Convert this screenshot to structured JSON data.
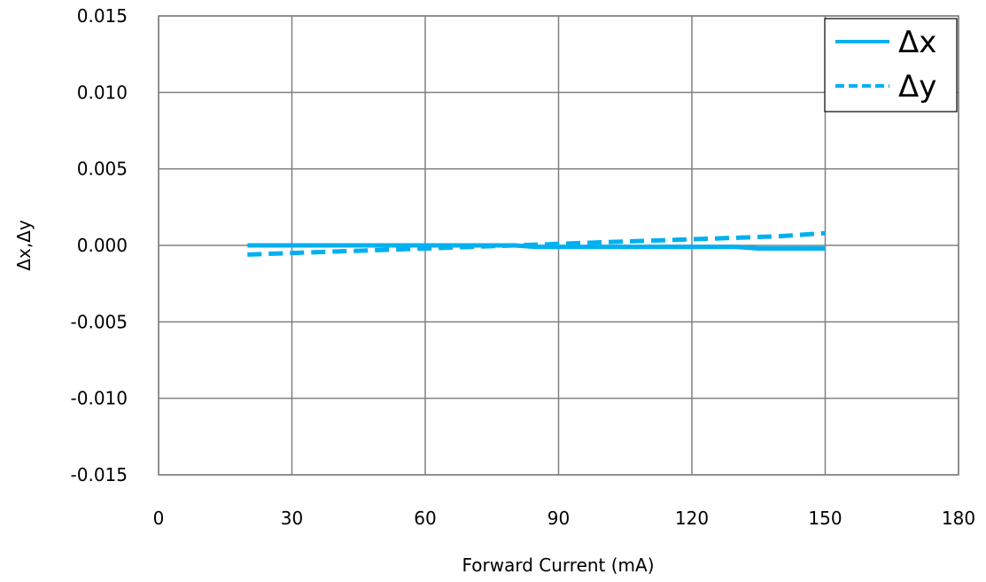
{
  "chart_data": {
    "type": "line",
    "title": "",
    "xlabel": "Forward Current (mA)",
    "ylabel": "Δx,Δy",
    "xlim": [
      0,
      180
    ],
    "ylim": [
      -0.015,
      0.015
    ],
    "x_ticks": [
      0,
      30,
      60,
      90,
      120,
      150,
      180
    ],
    "y_ticks": [
      -0.015,
      -0.01,
      -0.005,
      0.0,
      0.005,
      0.01,
      0.015
    ],
    "x_tick_labels": [
      "0",
      "30",
      "60",
      "90",
      "120",
      "150",
      "180"
    ],
    "y_tick_labels": [
      "-0.015",
      "-0.010",
      "-0.005",
      "0.000",
      "0.005",
      "0.010",
      "0.015"
    ],
    "grid": true,
    "legend_position": "top-right",
    "series": [
      {
        "name": "Δx",
        "style": "solid",
        "color": "#00B0F0",
        "x": [
          20,
          30,
          40,
          50,
          60,
          70,
          80,
          85,
          90,
          100,
          110,
          120,
          130,
          135,
          140,
          150
        ],
        "y": [
          0.0,
          0.0,
          0.0,
          0.0,
          0.0,
          0.0,
          0.0,
          -0.0001,
          -0.0001,
          -0.0001,
          -0.0001,
          -0.0001,
          -0.0001,
          -0.0002,
          -0.0002,
          -0.0002
        ]
      },
      {
        "name": "Δy",
        "style": "dashed",
        "color": "#00B0F0",
        "x": [
          20,
          30,
          40,
          50,
          60,
          70,
          80,
          90,
          100,
          110,
          120,
          130,
          140,
          150
        ],
        "y": [
          -0.0006,
          -0.0005,
          -0.0004,
          -0.0003,
          -0.0002,
          -0.0001,
          0.0,
          0.0001,
          0.0002,
          0.0003,
          0.0004,
          0.0005,
          0.0006,
          0.0008
        ]
      }
    ]
  }
}
